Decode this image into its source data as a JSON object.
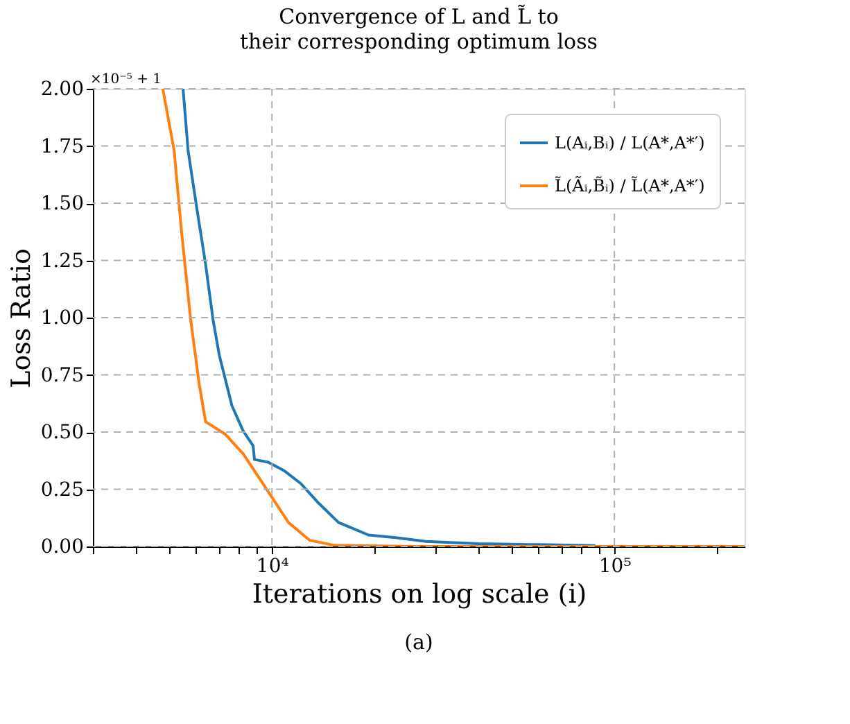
{
  "chart_data": {
    "type": "line",
    "title": "Convergence of L and L̃ to their corresponding optimum loss",
    "xlabel": "Iterations on log scale (i)",
    "ylabel": "Loss Ratio",
    "annotations": [
      "×10⁻⁵ + 1",
      "(a)"
    ],
    "log": "x",
    "grid": true,
    "legend": "top right",
    "line_style": "solid",
    "marker": "none",
    "xlim": [
      3000,
      240000
    ],
    "ylim": [
      0,
      2
    ],
    "xticks": [
      {
        "value": 3000,
        "label": null
      },
      {
        "value": 4000,
        "label": null
      },
      {
        "value": 5000,
        "label": null
      },
      {
        "value": 6000,
        "label": null
      },
      {
        "value": 7000,
        "label": null
      },
      {
        "value": 8000,
        "label": null
      },
      {
        "value": 9000,
        "label": null
      },
      {
        "value": 10000,
        "label": "10⁴"
      },
      {
        "value": 20000,
        "label": null
      },
      {
        "value": 30000,
        "label": null
      },
      {
        "value": 40000,
        "label": null
      },
      {
        "value": 50000,
        "label": null
      },
      {
        "value": 60000,
        "label": null
      },
      {
        "value": 70000,
        "label": null
      },
      {
        "value": 80000,
        "label": null
      },
      {
        "value": 90000,
        "label": null
      },
      {
        "value": 100000,
        "label": "10⁵"
      },
      {
        "value": 200000,
        "label": null
      }
    ],
    "yticks": [
      {
        "value": 0,
        "label": "0.00"
      },
      {
        "value": 0.25,
        "label": "0.25"
      },
      {
        "value": 0.5,
        "label": "0.50"
      },
      {
        "value": 0.75,
        "label": "0.75"
      },
      {
        "value": 1,
        "label": "1.00"
      },
      {
        "value": 1.25,
        "label": "1.25"
      },
      {
        "value": 1.5,
        "label": "1.50"
      },
      {
        "value": 1.75,
        "label": "1.75"
      },
      {
        "value": 2,
        "label": "2.00"
      }
    ],
    "series": [
      {
        "name": "L(Aᵢ,Bᵢ) / L(A*,A*′)",
        "color": "#1f77b4",
        "x": [
          5500,
          5690,
          6030,
          6390,
          6730,
          7020,
          7640,
          8240,
          8810,
          8890,
          9750,
          10880,
          12140,
          13670,
          15640,
          19150,
          23200,
          28200,
          40000,
          60000,
          88000
        ],
        "values": [
          2.0,
          1.73,
          1.48,
          1.24,
          0.99,
          0.835,
          0.615,
          0.505,
          0.44,
          0.38,
          0.368,
          0.33,
          0.275,
          0.19,
          0.105,
          0.05,
          0.038,
          0.022,
          0.012,
          0.008,
          0.004
        ]
      },
      {
        "name": "L̃(Ãᵢ,B̃ᵢ) / L̃(A*,A*′)",
        "color": "#ff7f0e",
        "x": [
          4800,
          5180,
          5450,
          5780,
          6130,
          6400,
          7310,
          8240,
          9750,
          11170,
          12880,
          15240,
          27000,
          240000
        ],
        "values": [
          2.0,
          1.73,
          1.37,
          1.0,
          0.71,
          0.545,
          0.49,
          0.405,
          0.24,
          0.105,
          0.027,
          0.005,
          0.0,
          0.0
        ]
      }
    ]
  }
}
